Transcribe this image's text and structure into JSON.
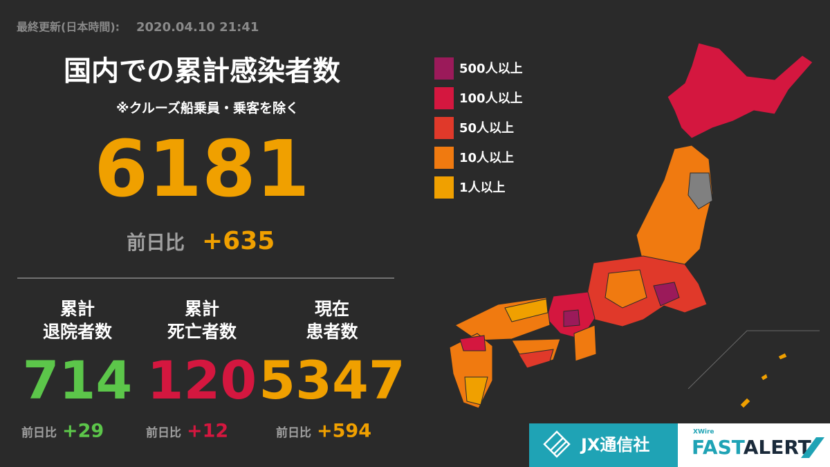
{
  "header": {
    "label": "最終更新(日本時間):",
    "timestamp": "2020.04.10 21:41"
  },
  "summary": {
    "title": "国内での累計感染者数",
    "note": "※クルーズ船乗員・乗客を除く",
    "total": 6181,
    "total_color": "#f0a000",
    "diff_label": "前日比",
    "diff": "+635"
  },
  "stats": [
    {
      "label": [
        "累計",
        "退院者数"
      ],
      "value": 714,
      "diff_label": "前日比",
      "diff": "+29",
      "color": "#5cc64a"
    },
    {
      "label": [
        "累計",
        "死亡者数"
      ],
      "value": 120,
      "diff_label": "前日比",
      "diff": "+12",
      "color": "#d4173f"
    },
    {
      "label": [
        "現在",
        "患者数"
      ],
      "value": 5347,
      "diff_label": "前日比",
      "diff": "+594",
      "color": "#f0a000"
    }
  ],
  "legend": {
    "items": [
      {
        "label": "500人以上",
        "color": "#9b1a5a"
      },
      {
        "label": "100人以上",
        "color": "#d4173f"
      },
      {
        "label": "50人以上",
        "color": "#e0392a"
      },
      {
        "label": "10人以上",
        "color": "#f07a10"
      },
      {
        "label": "1人以上",
        "color": "#f0a000"
      }
    ]
  },
  "footer": {
    "jx": "JX通信社",
    "xwire": "XWire",
    "fast": "FAST",
    "alert": "ALERT"
  }
}
